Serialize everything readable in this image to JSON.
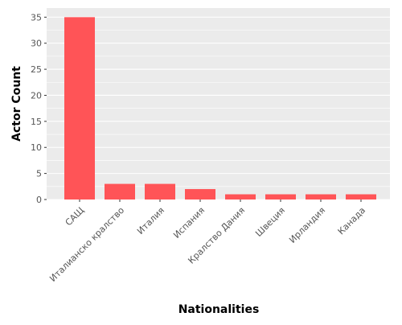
{
  "chart_data": {
    "type": "bar",
    "categories": [
      "САЩ",
      "Италианско кралство",
      "Италия",
      "Испания",
      "Кралство Дания",
      "Швеция",
      "Ирландия",
      "Канада"
    ],
    "values": [
      35,
      3,
      3,
      2,
      1,
      1,
      1,
      1
    ],
    "xlabel": "Nationalities",
    "ylabel": "Actor Count",
    "ylim": [
      0,
      36.75
    ],
    "yticks": [
      0,
      5,
      10,
      15,
      20,
      25,
      30,
      35
    ],
    "grid": true,
    "legend": "none",
    "colors": {
      "bar": "#ff5457",
      "plot_background": "#ebebeb",
      "grid": "#ffffff",
      "tick_text": "#555555",
      "axis_label": "#555555"
    }
  }
}
